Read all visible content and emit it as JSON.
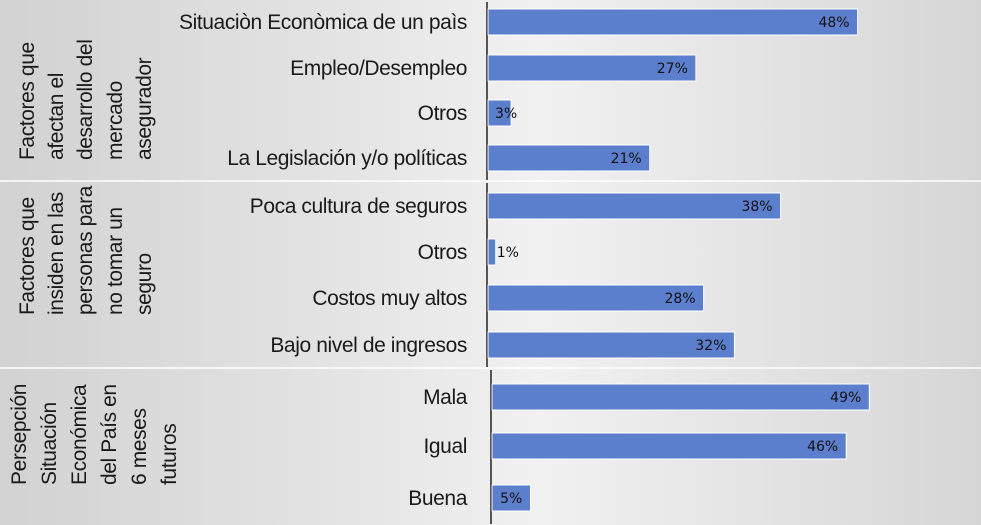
{
  "chart_data": {
    "type": "bar",
    "orientation": "horizontal",
    "title": "",
    "xlabel": "",
    "ylabel": "",
    "xlim": [
      0,
      100
    ],
    "grid": false,
    "legend": "none",
    "bar_color": "#5B7FCD",
    "value_format": "percent",
    "groups": [
      {
        "label": "Factores que afectan el desarrollo del mercado asegurador",
        "categories": [
          "Situaciòn Econòmica de un paìs",
          "Empleo/Desempleo",
          "Otros",
          "La Legislación y/o políticas"
        ],
        "values": [
          48,
          27,
          3,
          21
        ],
        "value_labels": [
          "48%",
          "27%",
          "3%",
          "21%"
        ]
      },
      {
        "label": "Factores que insiden en las personas para no tomar un seguro",
        "categories": [
          "Poca cultura de seguros",
          "Otros",
          "Costos muy altos",
          "Bajo nivel de ingresos"
        ],
        "values": [
          38,
          1,
          28,
          32
        ],
        "value_labels": [
          "38%",
          "1%",
          "28%",
          "32%"
        ]
      },
      {
        "label": "Persepción Situación Económica del País en 6 meses futuros",
        "categories": [
          "Mala",
          "Igual",
          "Buena"
        ],
        "values": [
          49,
          46,
          5
        ],
        "value_labels": [
          "49%",
          "46%",
          "5%"
        ]
      }
    ]
  }
}
